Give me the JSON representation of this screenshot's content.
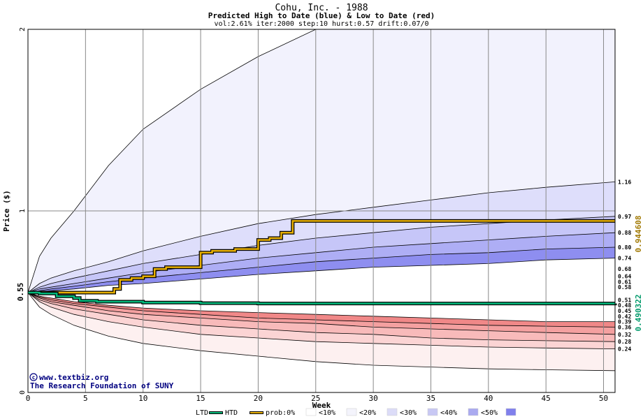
{
  "header": {
    "title": "Cohu, Inc. - 1988",
    "subtitle": "Predicted High to Date (blue) &  Low to Date (red)",
    "params": "vol:2.61% iter:2000 step:10 hurst:0.57 drift:0.07/0"
  },
  "watermark": {
    "line1": "www.textbiz.org",
    "line2": "The Research Foundation of SUNY"
  },
  "chart_data": {
    "type": "area",
    "xlabel": "Week",
    "ylabel": "Price ($)",
    "xlim": [
      0,
      51
    ],
    "ylim": [
      0,
      2
    ],
    "x_ticks": [
      "0",
      "5",
      "10",
      "15",
      "20",
      "25",
      "30",
      "35",
      "40",
      "45",
      "50"
    ],
    "y_ticks": [
      "0",
      "1",
      "2"
    ],
    "start_value_label": "0.55",
    "start_value": 0.55,
    "right_labels": [
      "1.16",
      "0.97",
      "0.88",
      "0.80",
      "0.74",
      "0.68",
      "0.64",
      "0.61",
      "0.58",
      "0.51",
      "0.48",
      "0.45",
      "0.42",
      "0.39",
      "0.36",
      "0.32",
      "0.28",
      "0.24"
    ],
    "high_label": "0.944608",
    "low_label": "0.490322",
    "bands": {
      "weeks": [
        0,
        1,
        2,
        4,
        7,
        10,
        15,
        20,
        25,
        30,
        35,
        40,
        45,
        51
      ],
      "upper_outer": [
        0.55,
        0.75,
        0.85,
        1.0,
        1.25,
        1.45,
        1.67,
        1.85,
        2.0,
        2.05,
        2.05,
        2.05,
        2.05,
        2.05
      ],
      "upper_10": [
        0.55,
        0.6,
        0.63,
        0.67,
        0.72,
        0.78,
        0.86,
        0.93,
        0.98,
        1.02,
        1.06,
        1.1,
        1.13,
        1.16
      ],
      "upper_20": [
        0.55,
        0.58,
        0.6,
        0.63,
        0.67,
        0.71,
        0.76,
        0.81,
        0.85,
        0.88,
        0.91,
        0.93,
        0.95,
        0.97
      ],
      "upper_30": [
        0.55,
        0.57,
        0.58,
        0.6,
        0.63,
        0.66,
        0.7,
        0.74,
        0.77,
        0.8,
        0.82,
        0.84,
        0.86,
        0.88
      ],
      "upper_40": [
        0.55,
        0.56,
        0.57,
        0.585,
        0.61,
        0.63,
        0.66,
        0.69,
        0.72,
        0.74,
        0.76,
        0.77,
        0.79,
        0.8
      ],
      "upper_50": [
        0.55,
        0.555,
        0.56,
        0.57,
        0.59,
        0.6,
        0.625,
        0.65,
        0.67,
        0.69,
        0.7,
        0.71,
        0.73,
        0.74
      ],
      "lower_50": [
        0.55,
        0.53,
        0.52,
        0.5,
        0.48,
        0.465,
        0.45,
        0.44,
        0.43,
        0.42,
        0.41,
        0.4,
        0.39,
        0.39
      ],
      "lower_40": [
        0.55,
        0.525,
        0.51,
        0.49,
        0.47,
        0.45,
        0.43,
        0.41,
        0.4,
        0.39,
        0.38,
        0.37,
        0.365,
        0.36
      ],
      "lower_30": [
        0.55,
        0.52,
        0.5,
        0.48,
        0.45,
        0.43,
        0.41,
        0.39,
        0.38,
        0.36,
        0.35,
        0.34,
        0.33,
        0.32
      ],
      "lower_20": [
        0.55,
        0.51,
        0.49,
        0.46,
        0.43,
        0.4,
        0.37,
        0.35,
        0.33,
        0.32,
        0.3,
        0.29,
        0.285,
        0.28
      ],
      "lower_10": [
        0.55,
        0.5,
        0.47,
        0.43,
        0.39,
        0.36,
        0.32,
        0.3,
        0.28,
        0.27,
        0.26,
        0.25,
        0.245,
        0.24
      ],
      "lower_outer": [
        0.55,
        0.47,
        0.43,
        0.37,
        0.31,
        0.27,
        0.23,
        0.2,
        0.17,
        0.15,
        0.14,
        0.13,
        0.125,
        0.12
      ]
    },
    "series": [
      {
        "name": "HTD",
        "color": "#e8b000",
        "points": [
          [
            0,
            0.55
          ],
          [
            7,
            0.55
          ],
          [
            7.5,
            0.57
          ],
          [
            8,
            0.62
          ],
          [
            9,
            0.63
          ],
          [
            10,
            0.64
          ],
          [
            11,
            0.68
          ],
          [
            12,
            0.69
          ],
          [
            14,
            0.69
          ],
          [
            15,
            0.77
          ],
          [
            16,
            0.78
          ],
          [
            18,
            0.79
          ],
          [
            20,
            0.84
          ],
          [
            21,
            0.85
          ],
          [
            22,
            0.88
          ],
          [
            23,
            0.944608
          ],
          [
            51,
            0.944608
          ]
        ]
      },
      {
        "name": "LTD",
        "color": "#00b87a",
        "points": [
          [
            0,
            0.55
          ],
          [
            1,
            0.545
          ],
          [
            2,
            0.545
          ],
          [
            2.5,
            0.53
          ],
          [
            4,
            0.52
          ],
          [
            4.5,
            0.505
          ],
          [
            6,
            0.5
          ],
          [
            10,
            0.495
          ],
          [
            15,
            0.492
          ],
          [
            20,
            0.49
          ],
          [
            51,
            0.490322
          ]
        ]
      }
    ],
    "legend": {
      "position": "bottom",
      "items": [
        {
          "label": "LTD",
          "swatch": "#00b87a"
        },
        {
          "label": "HTD",
          "swatch": "#e8b000"
        },
        {
          "label": "prob:0%",
          "swatch": "#ffffff"
        },
        {
          "label": "<10%",
          "swatch": "#f4f4fc"
        },
        {
          "label": "<20%",
          "swatch": "#dcdcf8"
        },
        {
          "label": "<30%",
          "swatch": "#c8c8f4"
        },
        {
          "label": "<40%",
          "swatch": "#aaaaf0"
        },
        {
          "label": "<50%",
          "swatch": "#8080ec"
        }
      ]
    },
    "colors": {
      "upper": [
        "#f2f2fd",
        "#dedefb",
        "#c6c6f8",
        "#aeaef5",
        "#8e8ef0"
      ],
      "lower": [
        "#fdf0f0",
        "#fbd4d4",
        "#f8baba",
        "#f4a0a0",
        "#f08888"
      ],
      "grid": "#888888"
    },
    "grid": true
  }
}
